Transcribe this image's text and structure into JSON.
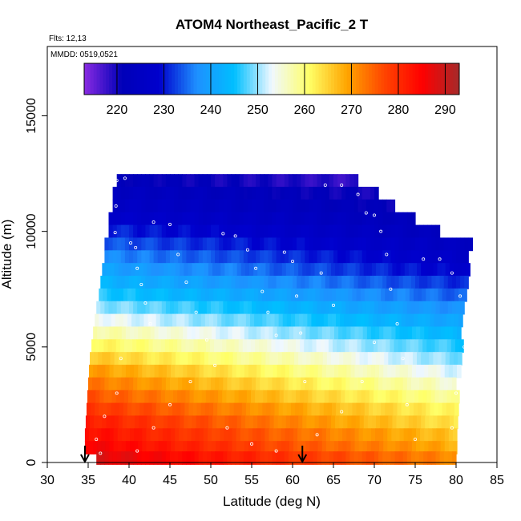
{
  "chart_data": {
    "type": "heatmap",
    "title": "ATOM4 Northeast_Pacific_2 T",
    "flights_label": "Flts: 12,13",
    "dates_label": "MMDD: 0519,0521",
    "xlabel": "Latitude (deg N)",
    "ylabel": "Altitude (m)",
    "xlim": [
      30,
      85
    ],
    "ylim": [
      0,
      18000
    ],
    "x_ticks": [
      "30",
      "35",
      "40",
      "45",
      "50",
      "55",
      "60",
      "65",
      "70",
      "75",
      "80",
      "85"
    ],
    "y_ticks": [
      "0",
      "5000",
      "10000",
      "15000"
    ],
    "colorbar": {
      "range": [
        213,
        293
      ],
      "tick_values": [
        220,
        230,
        240,
        250,
        260,
        270,
        280,
        290
      ],
      "tick_labels": [
        "220",
        "230",
        "240",
        "250",
        "260",
        "270",
        "280",
        "290"
      ],
      "colors": [
        "#8a2be2",
        "#0000b8",
        "#0000cd",
        "#1e90ff",
        "#00bfff",
        "#f0f8ff",
        "#ffff66",
        "#ffa500",
        "#ff4500",
        "#ff0000",
        "#a52a2a"
      ]
    },
    "layer_rows": [
      {
        "alt": 12200,
        "lat_start": 38.5,
        "lat_end": 68.0,
        "t_south": 222,
        "t_north": 218
      },
      {
        "alt": 11650,
        "lat_start": 38.0,
        "lat_end": 70.5,
        "t_south": 224,
        "t_north": 220
      },
      {
        "alt": 11100,
        "lat_start": 38.0,
        "lat_end": 72.5,
        "t_south": 226,
        "t_north": 221
      },
      {
        "alt": 10550,
        "lat_start": 37.5,
        "lat_end": 75.0,
        "t_south": 228,
        "t_north": 222
      },
      {
        "alt": 10000,
        "lat_start": 37.5,
        "lat_end": 78.0,
        "t_south": 231,
        "t_north": 223
      },
      {
        "alt": 9450,
        "lat_start": 37.0,
        "lat_end": 82.0,
        "t_south": 234,
        "t_north": 224
      },
      {
        "alt": 8900,
        "lat_start": 37.0,
        "lat_end": 81.5,
        "t_south": 237,
        "t_north": 226
      },
      {
        "alt": 8350,
        "lat_start": 36.7,
        "lat_end": 81.5,
        "t_south": 240,
        "t_north": 228
      },
      {
        "alt": 7800,
        "lat_start": 36.5,
        "lat_end": 81.5,
        "t_south": 243,
        "t_north": 231
      },
      {
        "alt": 7250,
        "lat_start": 36.3,
        "lat_end": 81.0,
        "t_south": 246,
        "t_north": 234
      },
      {
        "alt": 6700,
        "lat_start": 36.0,
        "lat_end": 81.0,
        "t_south": 250,
        "t_north": 237
      },
      {
        "alt": 6150,
        "lat_start": 35.8,
        "lat_end": 80.5,
        "t_south": 254,
        "t_north": 240
      },
      {
        "alt": 5600,
        "lat_start": 35.6,
        "lat_end": 80.5,
        "t_south": 258,
        "t_north": 243
      },
      {
        "alt": 5050,
        "lat_start": 35.4,
        "lat_end": 80.5,
        "t_south": 262,
        "t_north": 246
      },
      {
        "alt": 4500,
        "lat_start": 35.2,
        "lat_end": 80.3,
        "t_south": 266,
        "t_north": 249
      },
      {
        "alt": 3950,
        "lat_start": 35.1,
        "lat_end": 80.3,
        "t_south": 270,
        "t_north": 252
      },
      {
        "alt": 3400,
        "lat_start": 35.0,
        "lat_end": 80.0,
        "t_south": 273,
        "t_north": 255
      },
      {
        "alt": 2850,
        "lat_start": 34.9,
        "lat_end": 80.0,
        "t_south": 276,
        "t_north": 258
      },
      {
        "alt": 2300,
        "lat_start": 34.8,
        "lat_end": 80.0,
        "t_south": 279,
        "t_north": 261
      },
      {
        "alt": 1750,
        "lat_start": 34.7,
        "lat_end": 80.0,
        "t_south": 282,
        "t_north": 263
      },
      {
        "alt": 1200,
        "lat_start": 34.6,
        "lat_end": 80.0,
        "t_south": 284,
        "t_north": 266
      },
      {
        "alt": 650,
        "lat_start": 34.6,
        "lat_end": 80.0,
        "t_south": 286,
        "t_north": 268
      },
      {
        "alt": 200,
        "lat_start": 36.0,
        "lat_end": 80.0,
        "t_south": 288,
        "t_north": 271
      }
    ],
    "profile_markers": [
      {
        "lat": 38.5,
        "alt": 12200
      },
      {
        "lat": 39.5,
        "alt": 12300
      },
      {
        "lat": 38.4,
        "alt": 11100
      },
      {
        "lat": 38.3,
        "alt": 9950
      },
      {
        "lat": 40.2,
        "alt": 9500
      },
      {
        "lat": 40.8,
        "alt": 9300
      },
      {
        "lat": 41.0,
        "alt": 8400
      },
      {
        "lat": 41.5,
        "alt": 7700
      },
      {
        "lat": 42.0,
        "alt": 6900
      },
      {
        "lat": 42.6,
        "alt": 6000
      },
      {
        "lat": 43.0,
        "alt": 10400
      },
      {
        "lat": 45.0,
        "alt": 10300
      },
      {
        "lat": 46.0,
        "alt": 9000
      },
      {
        "lat": 47.0,
        "alt": 7800
      },
      {
        "lat": 48.2,
        "alt": 6500
      },
      {
        "lat": 49.5,
        "alt": 5300
      },
      {
        "lat": 50.5,
        "alt": 4200
      },
      {
        "lat": 51.5,
        "alt": 9900
      },
      {
        "lat": 53.0,
        "alt": 9800
      },
      {
        "lat": 54.5,
        "alt": 9200
      },
      {
        "lat": 55.5,
        "alt": 8400
      },
      {
        "lat": 56.3,
        "alt": 7400
      },
      {
        "lat": 57.0,
        "alt": 6500
      },
      {
        "lat": 58.0,
        "alt": 5500
      },
      {
        "lat": 59.0,
        "alt": 9100
      },
      {
        "lat": 60.0,
        "alt": 8700
      },
      {
        "lat": 60.5,
        "alt": 7200
      },
      {
        "lat": 61.0,
        "alt": 5600
      },
      {
        "lat": 61.5,
        "alt": 3500
      },
      {
        "lat": 64.0,
        "alt": 12000
      },
      {
        "lat": 66.0,
        "alt": 12000
      },
      {
        "lat": 68.0,
        "alt": 11600
      },
      {
        "lat": 69.0,
        "alt": 10800
      },
      {
        "lat": 70.0,
        "alt": 10700
      },
      {
        "lat": 70.8,
        "alt": 10000
      },
      {
        "lat": 71.5,
        "alt": 9000
      },
      {
        "lat": 72.0,
        "alt": 7500
      },
      {
        "lat": 72.8,
        "alt": 6000
      },
      {
        "lat": 73.5,
        "alt": 4500
      },
      {
        "lat": 74.0,
        "alt": 2500
      },
      {
        "lat": 75.0,
        "alt": 1000
      },
      {
        "lat": 76.0,
        "alt": 8800
      },
      {
        "lat": 78.0,
        "alt": 8800
      },
      {
        "lat": 79.5,
        "alt": 8200
      },
      {
        "lat": 80.5,
        "alt": 7200
      },
      {
        "lat": 81.0,
        "alt": 5000
      },
      {
        "lat": 80.0,
        "alt": 3000
      },
      {
        "lat": 79.5,
        "alt": 1500
      },
      {
        "lat": 39.0,
        "alt": 4500
      },
      {
        "lat": 38.5,
        "alt": 3000
      },
      {
        "lat": 37.0,
        "alt": 2000
      },
      {
        "lat": 36.0,
        "alt": 1000
      },
      {
        "lat": 36.5,
        "alt": 400
      },
      {
        "lat": 41.0,
        "alt": 500
      },
      {
        "lat": 43.0,
        "alt": 1500
      },
      {
        "lat": 45.0,
        "alt": 2500
      },
      {
        "lat": 47.5,
        "alt": 3500
      },
      {
        "lat": 52.0,
        "alt": 1500
      },
      {
        "lat": 55.0,
        "alt": 800
      },
      {
        "lat": 58.0,
        "alt": 500
      },
      {
        "lat": 63.0,
        "alt": 1200
      },
      {
        "lat": 66.0,
        "alt": 2200
      },
      {
        "lat": 68.5,
        "alt": 3500
      },
      {
        "lat": 70.0,
        "alt": 5200
      },
      {
        "lat": 65.0,
        "alt": 6800
      },
      {
        "lat": 63.5,
        "alt": 8200
      }
    ],
    "arrow_markers_lat": [
      34.6,
      61.2
    ]
  }
}
